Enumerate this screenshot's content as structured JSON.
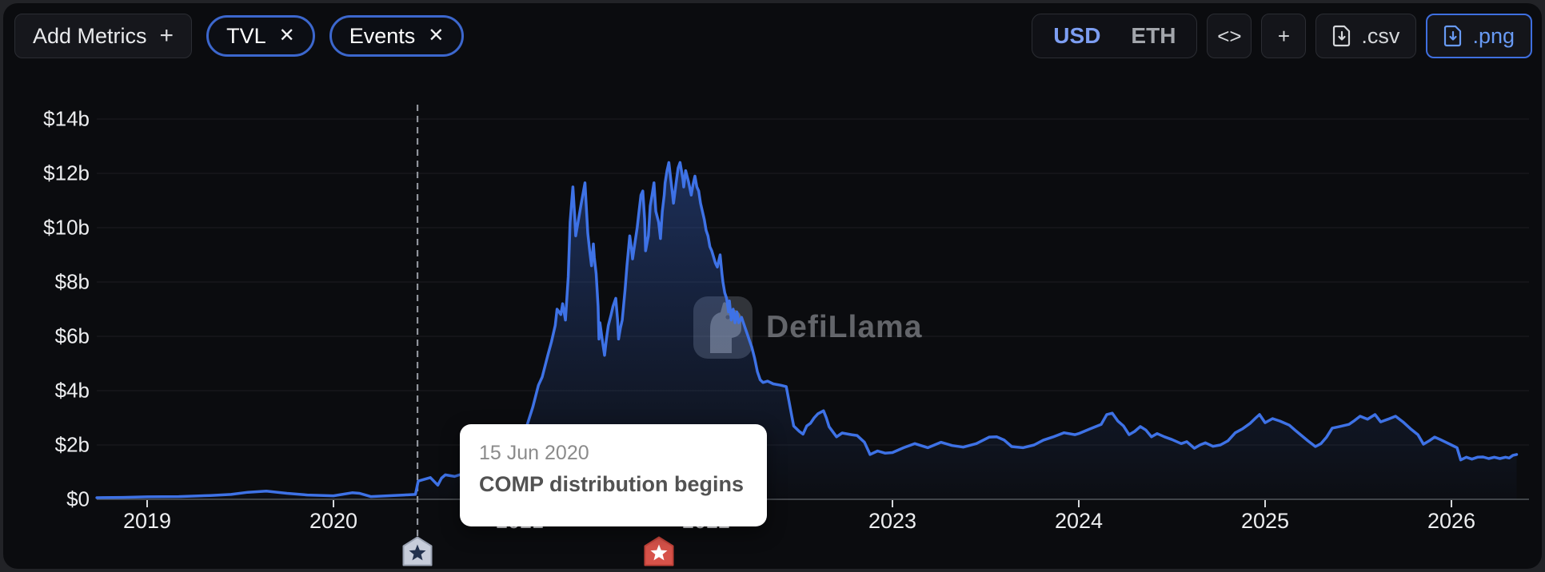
{
  "toolbar": {
    "add_metrics_label": "Add Metrics",
    "add_metrics_plus": "+",
    "chips": [
      {
        "label": "TVL",
        "close": "✕"
      },
      {
        "label": "Events",
        "close": "✕"
      }
    ],
    "currency_toggle": {
      "options": [
        "USD",
        "ETH"
      ],
      "selected": "USD"
    },
    "embed_label": "<>",
    "add_chart_label": "+",
    "csv_label": ".csv",
    "png_label": ".png"
  },
  "watermark": {
    "text": "DefiLlama"
  },
  "tooltip": {
    "date": "15 Jun 2020",
    "title": "COMP distribution begins"
  },
  "colors": {
    "line": "#3e72e6",
    "area_top": "rgba(62,114,230,0.38)",
    "area_bottom": "rgba(62,114,230,0.02)",
    "axis": "#53565b",
    "grid": "rgba(255,255,255,0.05)",
    "tick": "#d7d9dc",
    "dashed_event_line": "#90949b",
    "accent_blue": "#3f6fe0"
  },
  "chart_data": {
    "type": "area",
    "title": "TVL",
    "unit": "USD billions",
    "grid": true,
    "xlim": [
      2018.72,
      2026.42
    ],
    "ylim": [
      0,
      15.5
    ],
    "y_ticks": [
      {
        "value": 0,
        "label": "$0"
      },
      {
        "value": 2,
        "label": "$2b"
      },
      {
        "value": 4,
        "label": "$4b"
      },
      {
        "value": 6,
        "label": "$6b"
      },
      {
        "value": 8,
        "label": "$8b"
      },
      {
        "value": 10,
        "label": "$10b"
      },
      {
        "value": 12,
        "label": "$12b"
      },
      {
        "value": 14,
        "label": "$14b"
      }
    ],
    "x_ticks": [
      {
        "year": 2019,
        "label": "2019"
      },
      {
        "year": 2020,
        "label": "2020"
      },
      {
        "year": 2021,
        "label": "2021"
      },
      {
        "year": 2022,
        "label": "2022"
      },
      {
        "year": 2023,
        "label": "2023"
      },
      {
        "year": 2024,
        "label": "2024"
      },
      {
        "year": 2025,
        "label": "2025"
      },
      {
        "year": 2026,
        "label": "2026"
      }
    ],
    "events": [
      {
        "year": 2020.451,
        "date": "15 Jun 2020",
        "label": "COMP distribution begins",
        "marker": "star",
        "badge_color": "#c7cdda",
        "badge_border": "#9aa2b2",
        "star_color": "#23324e",
        "selected": true
      },
      {
        "year": 2021.747,
        "marker": "star",
        "badge_color": "#d7534a",
        "badge_border": "#c14138",
        "star_color": "#ffffff",
        "selected": false
      }
    ],
    "series": [
      {
        "name": "TVL",
        "color": "#3e72e6",
        "points": [
          [
            2018.73,
            0.06
          ],
          [
            2018.87,
            0.07
          ],
          [
            2019.0,
            0.09
          ],
          [
            2019.17,
            0.1
          ],
          [
            2019.34,
            0.14
          ],
          [
            2019.45,
            0.18
          ],
          [
            2019.54,
            0.26
          ],
          [
            2019.64,
            0.3
          ],
          [
            2019.75,
            0.22
          ],
          [
            2019.86,
            0.16
          ],
          [
            2020.0,
            0.13
          ],
          [
            2020.1,
            0.24
          ],
          [
            2020.14,
            0.22
          ],
          [
            2020.2,
            0.1
          ],
          [
            2020.29,
            0.13
          ],
          [
            2020.38,
            0.16
          ],
          [
            2020.44,
            0.18
          ],
          [
            2020.455,
            0.67
          ],
          [
            2020.49,
            0.74
          ],
          [
            2020.52,
            0.8
          ],
          [
            2020.56,
            0.52
          ],
          [
            2020.58,
            0.78
          ],
          [
            2020.6,
            0.9
          ],
          [
            2020.65,
            0.84
          ],
          [
            2020.72,
            1.0
          ],
          [
            2020.8,
            1.2
          ],
          [
            2020.89,
            1.55
          ],
          [
            2020.95,
            1.95
          ],
          [
            2021.0,
            2.4
          ],
          [
            2021.04,
            2.75
          ],
          [
            2021.07,
            3.4
          ],
          [
            2021.1,
            4.2
          ],
          [
            2021.12,
            4.5
          ],
          [
            2021.15,
            5.3
          ],
          [
            2021.17,
            5.8
          ],
          [
            2021.19,
            6.4
          ],
          [
            2021.2,
            7.0
          ],
          [
            2021.22,
            6.8
          ],
          [
            2021.23,
            7.2
          ],
          [
            2021.245,
            6.6
          ],
          [
            2021.26,
            8.2
          ],
          [
            2021.27,
            10.2
          ],
          [
            2021.285,
            11.5
          ],
          [
            2021.295,
            10.4
          ],
          [
            2021.3,
            9.7
          ],
          [
            2021.315,
            10.3
          ],
          [
            2021.33,
            10.9
          ],
          [
            2021.35,
            11.65
          ],
          [
            2021.365,
            9.8
          ],
          [
            2021.375,
            9.15
          ],
          [
            2021.385,
            8.6
          ],
          [
            2021.395,
            9.4
          ],
          [
            2021.4,
            8.9
          ],
          [
            2021.41,
            8.3
          ],
          [
            2021.42,
            7.1
          ],
          [
            2021.425,
            5.9
          ],
          [
            2021.43,
            6.5
          ],
          [
            2021.44,
            6.0
          ],
          [
            2021.455,
            5.3
          ],
          [
            2021.465,
            5.9
          ],
          [
            2021.475,
            6.4
          ],
          [
            2021.49,
            6.8
          ],
          [
            2021.5,
            7.1
          ],
          [
            2021.515,
            7.4
          ],
          [
            2021.525,
            6.6
          ],
          [
            2021.53,
            5.9
          ],
          [
            2021.54,
            6.3
          ],
          [
            2021.55,
            6.6
          ],
          [
            2021.565,
            7.7
          ],
          [
            2021.575,
            8.6
          ],
          [
            2021.59,
            9.7
          ],
          [
            2021.6,
            9.2
          ],
          [
            2021.605,
            8.85
          ],
          [
            2021.63,
            10.0
          ],
          [
            2021.64,
            10.6
          ],
          [
            2021.65,
            11.2
          ],
          [
            2021.66,
            11.35
          ],
          [
            2021.67,
            10.3
          ],
          [
            2021.675,
            9.15
          ],
          [
            2021.69,
            9.7
          ],
          [
            2021.7,
            10.8
          ],
          [
            2021.71,
            11.2
          ],
          [
            2021.72,
            11.65
          ],
          [
            2021.73,
            10.6
          ],
          [
            2021.745,
            10.2
          ],
          [
            2021.755,
            9.6
          ],
          [
            2021.765,
            10.6
          ],
          [
            2021.775,
            11.2
          ],
          [
            2021.78,
            11.65
          ],
          [
            2021.79,
            12.1
          ],
          [
            2021.8,
            12.4
          ],
          [
            2021.81,
            11.8
          ],
          [
            2021.82,
            11.2
          ],
          [
            2021.825,
            10.9
          ],
          [
            2021.84,
            11.7
          ],
          [
            2021.85,
            12.2
          ],
          [
            2021.86,
            12.4
          ],
          [
            2021.875,
            11.8
          ],
          [
            2021.88,
            11.5
          ],
          [
            2021.89,
            12.1
          ],
          [
            2021.905,
            11.7
          ],
          [
            2021.92,
            11.2
          ],
          [
            2021.93,
            11.6
          ],
          [
            2021.94,
            11.9
          ],
          [
            2021.95,
            11.5
          ],
          [
            2021.96,
            11.35
          ],
          [
            2021.97,
            10.9
          ],
          [
            2021.99,
            10.3
          ],
          [
            2022.0,
            9.9
          ],
          [
            2022.01,
            9.7
          ],
          [
            2022.02,
            9.3
          ],
          [
            2022.03,
            9.15
          ],
          [
            2022.05,
            8.7
          ],
          [
            2022.06,
            8.55
          ],
          [
            2022.075,
            9.0
          ],
          [
            2022.085,
            8.3
          ],
          [
            2022.09,
            8.0
          ],
          [
            2022.1,
            7.6
          ],
          [
            2022.11,
            7.4
          ],
          [
            2022.12,
            6.9
          ],
          [
            2022.125,
            7.3
          ],
          [
            2022.135,
            6.6
          ],
          [
            2022.145,
            7.0
          ],
          [
            2022.155,
            6.5
          ],
          [
            2022.165,
            6.9
          ],
          [
            2022.175,
            6.5
          ],
          [
            2022.19,
            6.7
          ],
          [
            2022.2,
            6.5
          ],
          [
            2022.215,
            6.2
          ],
          [
            2022.23,
            5.9
          ],
          [
            2022.245,
            5.6
          ],
          [
            2022.26,
            5.2
          ],
          [
            2022.275,
            4.7
          ],
          [
            2022.29,
            4.4
          ],
          [
            2022.305,
            4.3
          ],
          [
            2022.33,
            4.35
          ],
          [
            2022.36,
            4.25
          ],
          [
            2022.4,
            4.2
          ],
          [
            2022.43,
            4.15
          ],
          [
            2022.445,
            3.6
          ],
          [
            2022.46,
            3.05
          ],
          [
            2022.47,
            2.7
          ],
          [
            2022.5,
            2.5
          ],
          [
            2022.52,
            2.4
          ],
          [
            2022.54,
            2.7
          ],
          [
            2022.56,
            2.8
          ],
          [
            2022.58,
            3.0
          ],
          [
            2022.6,
            3.15
          ],
          [
            2022.63,
            3.26
          ],
          [
            2022.645,
            3.0
          ],
          [
            2022.66,
            2.67
          ],
          [
            2022.7,
            2.3
          ],
          [
            2022.73,
            2.44
          ],
          [
            2022.78,
            2.38
          ],
          [
            2022.81,
            2.35
          ],
          [
            2022.85,
            2.1
          ],
          [
            2022.87,
            1.8
          ],
          [
            2022.88,
            1.65
          ],
          [
            2022.92,
            1.78
          ],
          [
            2022.96,
            1.7
          ],
          [
            2023.0,
            1.72
          ],
          [
            2023.06,
            1.9
          ],
          [
            2023.12,
            2.05
          ],
          [
            2023.19,
            1.9
          ],
          [
            2023.26,
            2.1
          ],
          [
            2023.32,
            1.98
          ],
          [
            2023.38,
            1.92
          ],
          [
            2023.45,
            2.05
          ],
          [
            2023.52,
            2.29
          ],
          [
            2023.56,
            2.3
          ],
          [
            2023.6,
            2.18
          ],
          [
            2023.64,
            1.94
          ],
          [
            2023.7,
            1.9
          ],
          [
            2023.76,
            2.0
          ],
          [
            2023.81,
            2.18
          ],
          [
            2023.86,
            2.29
          ],
          [
            2023.92,
            2.45
          ],
          [
            2023.98,
            2.38
          ],
          [
            2024.0,
            2.42
          ],
          [
            2024.06,
            2.59
          ],
          [
            2024.12,
            2.76
          ],
          [
            2024.15,
            3.12
          ],
          [
            2024.18,
            3.17
          ],
          [
            2024.21,
            2.88
          ],
          [
            2024.24,
            2.7
          ],
          [
            2024.27,
            2.38
          ],
          [
            2024.3,
            2.5
          ],
          [
            2024.33,
            2.68
          ],
          [
            2024.36,
            2.55
          ],
          [
            2024.39,
            2.3
          ],
          [
            2024.42,
            2.42
          ],
          [
            2024.46,
            2.3
          ],
          [
            2024.5,
            2.2
          ],
          [
            2024.55,
            2.05
          ],
          [
            2024.58,
            2.12
          ],
          [
            2024.62,
            1.88
          ],
          [
            2024.65,
            2.0
          ],
          [
            2024.68,
            2.08
          ],
          [
            2024.72,
            1.95
          ],
          [
            2024.76,
            2.0
          ],
          [
            2024.8,
            2.15
          ],
          [
            2024.84,
            2.45
          ],
          [
            2024.88,
            2.6
          ],
          [
            2024.92,
            2.8
          ],
          [
            2024.95,
            3.0
          ],
          [
            2024.97,
            3.12
          ],
          [
            2025.0,
            2.82
          ],
          [
            2025.04,
            2.97
          ],
          [
            2025.08,
            2.88
          ],
          [
            2025.13,
            2.73
          ],
          [
            2025.16,
            2.55
          ],
          [
            2025.19,
            2.38
          ],
          [
            2025.23,
            2.15
          ],
          [
            2025.27,
            1.94
          ],
          [
            2025.3,
            2.05
          ],
          [
            2025.33,
            2.29
          ],
          [
            2025.36,
            2.62
          ],
          [
            2025.4,
            2.68
          ],
          [
            2025.45,
            2.76
          ],
          [
            2025.48,
            2.9
          ],
          [
            2025.51,
            3.06
          ],
          [
            2025.55,
            2.95
          ],
          [
            2025.59,
            3.12
          ],
          [
            2025.62,
            2.85
          ],
          [
            2025.66,
            2.95
          ],
          [
            2025.7,
            3.06
          ],
          [
            2025.74,
            2.85
          ],
          [
            2025.78,
            2.6
          ],
          [
            2025.82,
            2.38
          ],
          [
            2025.85,
            2.03
          ],
          [
            2025.88,
            2.15
          ],
          [
            2025.91,
            2.29
          ],
          [
            2025.94,
            2.2
          ],
          [
            2025.97,
            2.1
          ],
          [
            2026.0,
            2.0
          ],
          [
            2026.03,
            1.9
          ],
          [
            2026.05,
            1.45
          ],
          [
            2026.08,
            1.55
          ],
          [
            2026.11,
            1.48
          ],
          [
            2026.14,
            1.55
          ],
          [
            2026.17,
            1.56
          ],
          [
            2026.2,
            1.5
          ],
          [
            2026.23,
            1.55
          ],
          [
            2026.26,
            1.5
          ],
          [
            2026.29,
            1.55
          ],
          [
            2026.31,
            1.52
          ],
          [
            2026.33,
            1.62
          ],
          [
            2026.35,
            1.65
          ]
        ]
      }
    ]
  }
}
